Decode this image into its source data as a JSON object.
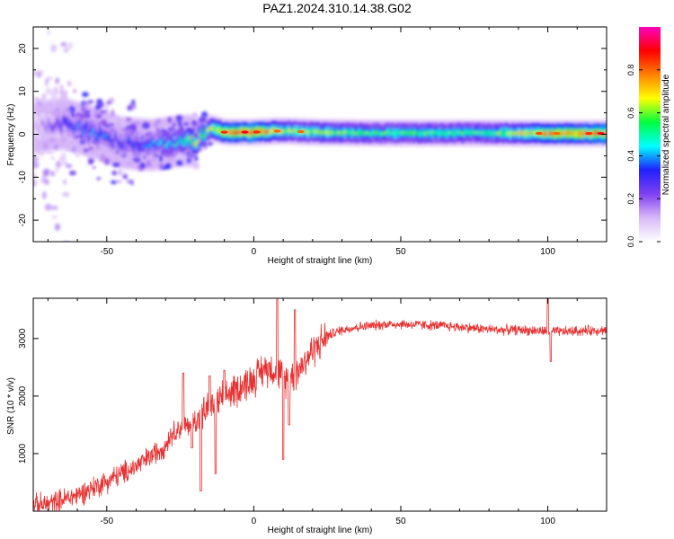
{
  "title": "PAZ1.2024.310.14.38.G02",
  "chart_data": [
    {
      "type": "heatmap",
      "xlabel": "Height of straight line (km)",
      "ylabel": "Frequency (Hz)",
      "xlim": [
        -75,
        120
      ],
      "ylim": [
        -25,
        25
      ],
      "xticks": [
        -50,
        0,
        50,
        100
      ],
      "yticks": [
        -20,
        -10,
        0,
        10,
        20
      ],
      "colorbar": {
        "label": "Normalized spectral amplitude",
        "range": [
          0,
          1
        ],
        "ticks": [
          "0.0",
          "0.2",
          "0.4",
          "0.6",
          "0.8"
        ],
        "colors": [
          "#ffffff",
          "#d8b8f8",
          "#8040f0",
          "#2020ff",
          "#00ffff",
          "#00ff40",
          "#ffff00",
          "#ff8000",
          "#ff0000",
          "#ff00c0"
        ]
      },
      "ridge": [
        {
          "x": -75,
          "f": 1.5,
          "a": 0.1
        },
        {
          "x": -65,
          "f": 2.5,
          "a": 0.3
        },
        {
          "x": -55,
          "f": 0.5,
          "a": 0.35
        },
        {
          "x": -45,
          "f": -2.0,
          "a": 0.3
        },
        {
          "x": -35,
          "f": -2.5,
          "a": 0.35
        },
        {
          "x": -25,
          "f": -1.5,
          "a": 0.45
        },
        {
          "x": -20,
          "f": -1.5,
          "a": 0.6
        },
        {
          "x": -15,
          "f": 1.5,
          "a": 0.55
        },
        {
          "x": -10,
          "f": 0.5,
          "a": 0.7
        },
        {
          "x": 0,
          "f": 0.5,
          "a": 0.8
        },
        {
          "x": 10,
          "f": 0.8,
          "a": 0.55
        },
        {
          "x": 20,
          "f": 0.5,
          "a": 0.55
        },
        {
          "x": 40,
          "f": 0.3,
          "a": 0.5
        },
        {
          "x": 60,
          "f": 0.3,
          "a": 0.5
        },
        {
          "x": 80,
          "f": 0.3,
          "a": 0.5
        },
        {
          "x": 100,
          "f": 0.2,
          "a": 0.7
        },
        {
          "x": 120,
          "f": 0.2,
          "a": 0.75
        }
      ]
    },
    {
      "type": "line",
      "xlabel": "Height of straight line (km)",
      "ylabel": "SNR (10 * v/v)",
      "xlim": [
        -75,
        120
      ],
      "ylim": [
        0,
        3700
      ],
      "xticks": [
        -50,
        0,
        50,
        100
      ],
      "yticks": [
        1000,
        2000,
        3000
      ],
      "color": "#e83030",
      "x": [
        -75,
        -70,
        -65,
        -60,
        -55,
        -50,
        -45,
        -40,
        -35,
        -30,
        -28,
        -25,
        -22,
        -20,
        -18,
        -15,
        -12,
        -10,
        -5,
        0,
        3,
        5,
        8,
        10,
        12,
        15,
        18,
        20,
        25,
        30,
        35,
        40,
        45,
        50,
        55,
        60,
        65,
        70,
        75,
        80,
        85,
        90,
        95,
        100,
        105,
        110,
        115,
        120
      ],
      "y": [
        100,
        120,
        200,
        280,
        400,
        520,
        650,
        780,
        950,
        1150,
        1350,
        1450,
        1500,
        1600,
        1650,
        1800,
        1900,
        2000,
        2150,
        2300,
        2450,
        2500,
        2450,
        2300,
        2300,
        2450,
        2650,
        2800,
        3050,
        3150,
        3200,
        3220,
        3250,
        3250,
        3240,
        3230,
        3220,
        3200,
        3180,
        3160,
        3150,
        3150,
        3140,
        3120,
        3120,
        3130,
        3140,
        3150
      ],
      "spikes": [
        {
          "x": -24,
          "y": 2400
        },
        {
          "x": -21,
          "y": 1100
        },
        {
          "x": -18,
          "y": 350
        },
        {
          "x": -15,
          "y": 2350
        },
        {
          "x": -13,
          "y": 650
        },
        {
          "x": -10,
          "y": 2450
        },
        {
          "x": 8,
          "y": 3700
        },
        {
          "x": 10,
          "y": 900
        },
        {
          "x": 12,
          "y": 1500
        },
        {
          "x": 14,
          "y": 3500
        },
        {
          "x": 100,
          "y": 3700
        },
        {
          "x": 101,
          "y": 2600
        }
      ]
    }
  ]
}
